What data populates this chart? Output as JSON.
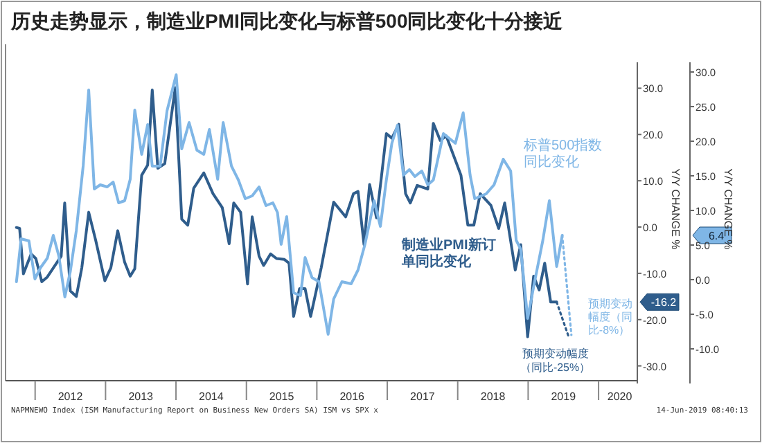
{
  "chart_data": {
    "type": "line",
    "title": "历史走势显示，制造业PMI同比变化与标普500同比变化十分接近",
    "xlim": [
      2011.58,
      2020.55
    ],
    "xticks": [
      {
        "value": 2012,
        "label": null
      },
      {
        "value": 2012.5,
        "label": "2012"
      },
      {
        "value": 2013,
        "label": null
      },
      {
        "value": 2013.5,
        "label": "2013"
      },
      {
        "value": 2014,
        "label": null
      },
      {
        "value": 2014.5,
        "label": "2014"
      },
      {
        "value": 2015,
        "label": null
      },
      {
        "value": 2015.5,
        "label": "2015"
      },
      {
        "value": 2016,
        "label": null
      },
      {
        "value": 2016.5,
        "label": "2016"
      },
      {
        "value": 2017,
        "label": null
      },
      {
        "value": 2017.5,
        "label": "2017"
      },
      {
        "value": 2018,
        "label": null
      },
      {
        "value": 2018.5,
        "label": "2018"
      },
      {
        "value": 2019,
        "label": null
      },
      {
        "value": 2019.5,
        "label": "2019"
      },
      {
        "value": 2020,
        "label": null
      },
      {
        "value": 2020.3,
        "label": "2020"
      }
    ],
    "ylim": [
      -33.2,
      35
    ],
    "yticks": [
      {
        "value": -30,
        "label": "-30.0"
      },
      {
        "value": -20,
        "label": "-20.0"
      },
      {
        "value": -10,
        "label": "-10.0"
      },
      {
        "value": 0,
        "label": "0.0"
      },
      {
        "value": 10,
        "label": "10.0"
      },
      {
        "value": 20,
        "label": "20.0"
      },
      {
        "value": 30,
        "label": "30.0"
      }
    ],
    "y2lim": [
      -14.6,
      31
    ],
    "y2ticks": [
      {
        "value": -10,
        "label": "-10.0"
      },
      {
        "value": -5,
        "label": "-5.0"
      },
      {
        "value": 0,
        "label": "0.0"
      },
      {
        "value": 5,
        "label": "5.0"
      },
      {
        "value": 10,
        "label": "10.0"
      },
      {
        "value": 15,
        "label": "15.0"
      },
      {
        "value": 20,
        "label": "20.0"
      },
      {
        "value": 25,
        "label": "25.0"
      },
      {
        "value": 30,
        "label": "30.0"
      }
    ],
    "ylabel": "Y/Y CHANGE %",
    "y2label": "Y/Y CHANGE %",
    "grid": false,
    "legend": false,
    "line_style": "solid",
    "series": [
      {
        "name": "制造业PMI新订单同比变化",
        "color": "#2f5d8c",
        "axis": "y",
        "x": [
          2011.735,
          2011.78,
          2011.834,
          2011.944,
          2012.01,
          2012.095,
          2012.173,
          2012.304,
          2012.37,
          2012.42,
          2012.5,
          2012.585,
          2012.663,
          2012.761,
          2012.859,
          2012.99,
          2013.075,
          2013.173,
          2013.271,
          2013.35,
          2013.415,
          2013.513,
          2013.598,
          2013.663,
          2013.742,
          2013.84,
          2013.99,
          2014.082,
          2014.167,
          2014.252,
          2014.395,
          2014.526,
          2014.657,
          2014.755,
          2014.82,
          2014.918,
          2015.016,
          2015.082,
          2015.18,
          2015.245,
          2015.343,
          2015.428,
          2015.539,
          2015.605,
          2015.67,
          2015.755,
          2015.833,
          2015.912,
          2016.062,
          2016.239,
          2016.409,
          2016.52,
          2016.585,
          2016.67,
          2016.749,
          2016.847,
          2016.912,
          2016.987,
          2017.065,
          2017.163,
          2017.26,
          2017.327,
          2017.425,
          2017.575,
          2017.654,
          2017.752,
          2017.837,
          2018.046,
          2018.144,
          2018.229,
          2018.32,
          2018.471,
          2018.582,
          2018.667,
          2018.817,
          2018.895,
          2018.993,
          2019.078,
          2019.157,
          2019.235,
          2019.32,
          2019.405
        ],
        "values": [
          -0.1,
          -0.3,
          -10.1,
          -5.8,
          -6.8,
          -11.8,
          -10.8,
          -7.8,
          -6.3,
          5.2,
          -13.8,
          -15.0,
          -8.8,
          3.2,
          -2.8,
          -11.6,
          -8.8,
          -0.8,
          -7.6,
          -10.6,
          -9.0,
          11.2,
          13.4,
          29.6,
          12.7,
          13.7,
          30.1,
          1.7,
          0.4,
          8.4,
          11.7,
          7.2,
          4.2,
          -3.6,
          5.2,
          3.2,
          -12.3,
          2.2,
          -6.3,
          -8.3,
          -5.8,
          -6.8,
          -7.0,
          -7.8,
          -19.3,
          -13.3,
          -13.3,
          -19.3,
          -8.8,
          5.4,
          2.2,
          7.2,
          7.7,
          -3.8,
          9.2,
          2.0,
          10.2,
          20.2,
          19.2,
          22.2,
          7.2,
          5.2,
          9.0,
          8.2,
          22.4,
          18.7,
          19.7,
          11.2,
          0.4,
          0.4,
          7.2,
          4.7,
          -0.3,
          5.2,
          -9.3,
          -3.8,
          -23.7,
          -10.6,
          -13.6,
          -7.8,
          -16.2,
          -16.2
        ]
      },
      {
        "name": "标普500指数同比变化",
        "color": "#7fb6e6",
        "axis": "y2",
        "x": [
          2011.735,
          2011.801,
          2011.912,
          2011.997,
          2012.075,
          2012.173,
          2012.258,
          2012.337,
          2012.422,
          2012.5,
          2012.585,
          2012.683,
          2012.761,
          2012.84,
          2012.925,
          2013.023,
          2013.108,
          2013.186,
          2013.271,
          2013.35,
          2013.415,
          2013.513,
          2013.598,
          2013.663,
          2013.775,
          2013.873,
          2014.003,
          2014.082,
          2014.186,
          2014.297,
          2014.395,
          2014.474,
          2014.592,
          2014.67,
          2014.788,
          2014.886,
          2014.984,
          2015.082,
          2015.18,
          2015.278,
          2015.376,
          2015.441,
          2015.493,
          2015.572,
          2015.67,
          2015.768,
          2015.833,
          2015.931,
          2016.03,
          2016.16,
          2016.239,
          2016.356,
          2016.487,
          2016.585,
          2016.683,
          2016.814,
          2016.902,
          2016.987,
          2017.065,
          2017.144,
          2017.229,
          2017.314,
          2017.392,
          2017.49,
          2017.575,
          2017.654,
          2017.797,
          2017.882,
          2017.967,
          2018.078,
          2018.176,
          2018.242,
          2018.405,
          2018.516,
          2018.647,
          2018.752,
          2018.83,
          2018.895,
          2018.993,
          2019.092,
          2019.209,
          2019.301,
          2019.405,
          2019.484
        ],
        "values": [
          -0.3,
          5.9,
          5.6,
          0.1,
          1.7,
          3.1,
          6.4,
          3.4,
          -2.5,
          1.2,
          7.1,
          16.5,
          27.4,
          13.1,
          13.7,
          13.4,
          14.1,
          11.1,
          11.4,
          14.5,
          24.5,
          18.1,
          22.4,
          16.4,
          16.4,
          24.4,
          29.6,
          18.9,
          22.7,
          18.7,
          18.1,
          21.7,
          14.5,
          22.7,
          16.4,
          14.4,
          11.7,
          12.1,
          13.4,
          10.7,
          11.1,
          9.7,
          5.1,
          9.1,
          -1.9,
          -2.3,
          3.2,
          0.3,
          -0.3,
          -7.9,
          -2.8,
          -0.3,
          -0.6,
          1.4,
          5.1,
          11.4,
          7.7,
          14.4,
          19.7,
          22.3,
          15.1,
          15.9,
          14.9,
          15.7,
          13.7,
          14.4,
          21.1,
          20.4,
          19.7,
          24.1,
          15.1,
          11.7,
          12.4,
          13.7,
          17.4,
          15.7,
          5.7,
          4.4,
          -5.6,
          -0.3,
          5.7,
          11.4,
          1.9,
          6.4
        ]
      },
      {
        "color": "#2f5d8c",
        "axis": "y",
        "line_style": "dotted",
        "x": [
          2019.405,
          2019.582
        ],
        "values": [
          -16.2,
          -24
        ]
      },
      {
        "color": "#7fb6e6",
        "axis": "y2",
        "line_style": "dotted",
        "x": [
          2019.484,
          2019.614
        ],
        "values": [
          6.4,
          -8
        ]
      }
    ],
    "annotations": [
      "预期变动幅度（同比-25%）",
      "预期变动幅度（同比-8%）",
      "-16.2",
      "6.4",
      "NAPMNEWO Index (ISM Manufacturing Report on Business New Orders SA) ISM vs SPX x",
      "14-Jun-2019 08:40:13"
    ]
  }
}
